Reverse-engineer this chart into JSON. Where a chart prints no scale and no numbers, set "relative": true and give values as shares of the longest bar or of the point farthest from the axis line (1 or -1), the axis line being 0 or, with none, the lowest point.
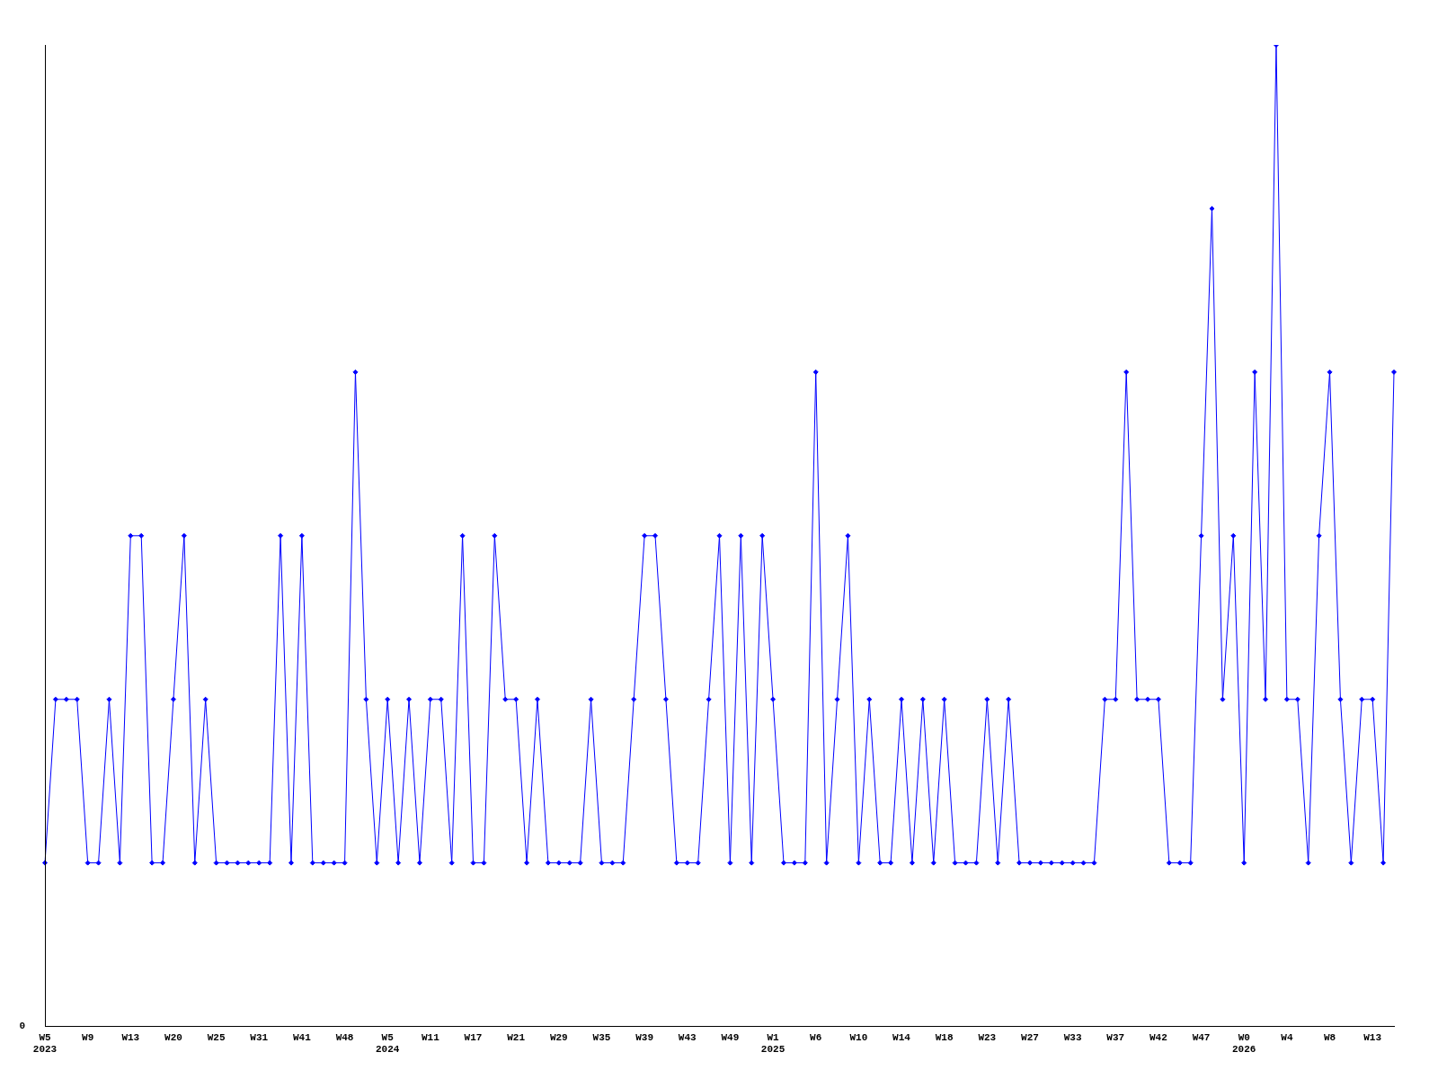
{
  "chart_data": {
    "type": "line",
    "relative": true,
    "marker": "diamond",
    "annotations": [
      "0"
    ],
    "categories": [
      "W5 2023",
      null,
      null,
      null,
      "W9",
      null,
      null,
      null,
      "W13",
      null,
      null,
      null,
      "W20",
      null,
      null,
      null,
      "W25",
      null,
      null,
      null,
      "W31",
      null,
      null,
      null,
      "W41",
      null,
      null,
      null,
      "W48",
      null,
      null,
      null,
      "W5 2024",
      null,
      null,
      null,
      "W11",
      null,
      null,
      null,
      "W17",
      null,
      null,
      null,
      "W21",
      null,
      null,
      null,
      "W29",
      null,
      null,
      null,
      "W35",
      null,
      null,
      null,
      "W39",
      null,
      null,
      null,
      "W43",
      null,
      null,
      null,
      "W49",
      null,
      null,
      null,
      "W1 2025",
      null,
      null,
      null,
      "W6",
      null,
      null,
      null,
      "W10",
      null,
      null,
      null,
      "W14",
      null,
      null,
      null,
      "W18",
      null,
      null,
      null,
      "W23",
      null,
      null,
      null,
      "W27",
      null,
      null,
      null,
      "W33",
      null,
      null,
      null,
      "W37",
      null,
      null,
      null,
      "W42",
      null,
      null,
      null,
      "W47",
      null,
      null,
      null,
      "W0 2026",
      null,
      null,
      null,
      "W4",
      null,
      null,
      null,
      "W8",
      null,
      null,
      null,
      "W13",
      null,
      null
    ],
    "series": [
      {
        "color": "#0000ff",
        "values": [
          0.1667,
          0.3333,
          0.3333,
          0.3333,
          0.1667,
          0.1667,
          0.3333,
          0.1667,
          0.5,
          0.5,
          0.1667,
          0.1667,
          0.3333,
          0.5,
          0.1667,
          0.3333,
          0.1667,
          0.1667,
          0.1667,
          0.1667,
          0.1667,
          0.1667,
          0.5,
          0.1667,
          0.5,
          0.1667,
          0.1667,
          0.1667,
          0.1667,
          0.6667,
          0.3333,
          0.1667,
          0.3333,
          0.1667,
          0.3333,
          0.1667,
          0.3333,
          0.3333,
          0.1667,
          0.5,
          0.1667,
          0.1667,
          0.5,
          0.3333,
          0.3333,
          0.1667,
          0.3333,
          0.1667,
          0.1667,
          0.1667,
          0.1667,
          0.3333,
          0.1667,
          0.1667,
          0.1667,
          0.3333,
          0.5,
          0.5,
          0.3333,
          0.1667,
          0.1667,
          0.1667,
          0.3333,
          0.5,
          0.1667,
          0.5,
          0.1667,
          0.5,
          0.3333,
          0.1667,
          0.1667,
          0.1667,
          0.6667,
          0.1667,
          0.3333,
          0.5,
          0.1667,
          0.3333,
          0.1667,
          0.1667,
          0.3333,
          0.1667,
          0.3333,
          0.1667,
          0.3333,
          0.1667,
          0.1667,
          0.1667,
          0.3333,
          0.1667,
          0.3333,
          0.1667,
          0.1667,
          0.1667,
          0.1667,
          0.1667,
          0.1667,
          0.1667,
          0.1667,
          0.3333,
          0.3333,
          0.6667,
          0.3333,
          0.3333,
          0.3333,
          0.1667,
          0.1667,
          0.1667,
          0.5,
          0.8333,
          0.3333,
          0.5,
          0.1667,
          0.6667,
          0.3333,
          1,
          0.3333,
          0.3333,
          0.1667,
          0.5,
          0.6667,
          0.3333,
          0.1667,
          0.3333,
          0.3333,
          0.1667,
          0.6667
        ]
      }
    ]
  }
}
